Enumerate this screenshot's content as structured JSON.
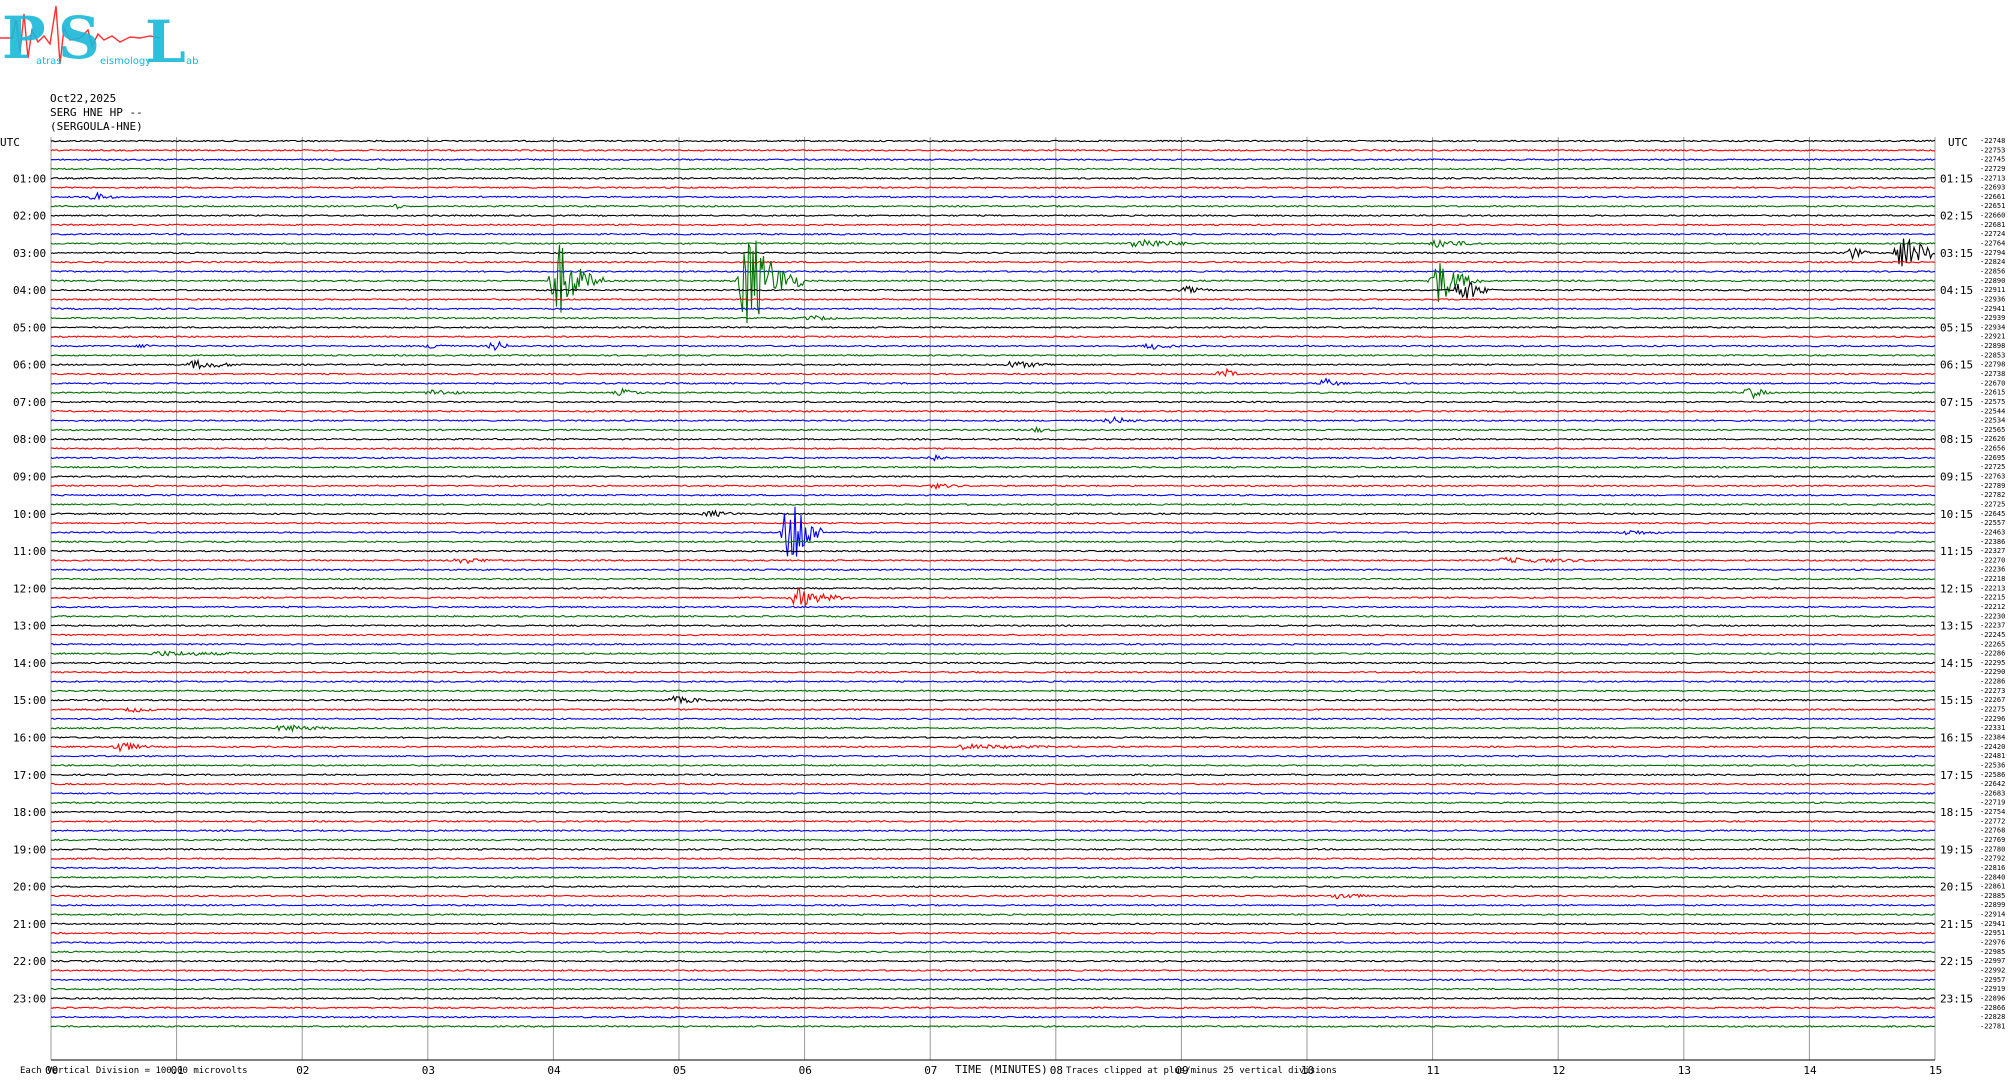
{
  "logo": {
    "letters": "PSL",
    "subtitle_left": "atras",
    "subtitle_mid": "eismology",
    "subtitle_right": "ab"
  },
  "header": {
    "date": "Oct22,2025",
    "station": "SERG HNE HP --",
    "location": "(SERGOULA-HNE)"
  },
  "utc_label": "UTC",
  "colors": {
    "trace_cycle": [
      "#000000",
      "#ff0000",
      "#0000ff",
      "#007000"
    ],
    "grid": "#999999",
    "logo_cyan": "#19b8d8",
    "logo_red": "#ff3030"
  },
  "footer": {
    "scale_note": "Each Vertical Division =  100.00 microvolts",
    "x_title": "TIME (MINUTES)",
    "clip_note": "Traces clipped at plus/minus 25 vertical divisions"
  },
  "chart_data": {
    "type": "line",
    "title": "",
    "xlabel": "TIME (MINUTES)",
    "ylabel": "UTC",
    "xlim": [
      0,
      15
    ],
    "x_ticks": [
      "00",
      "01",
      "02",
      "03",
      "04",
      "05",
      "06",
      "07",
      "08",
      "09",
      "10",
      "11",
      "12",
      "13",
      "14",
      "15"
    ],
    "trace_minutes": 15,
    "trace_count": 96,
    "left_time_labels": [
      "01:00",
      "02:00",
      "03:00",
      "04:00",
      "05:00",
      "06:00",
      "07:00",
      "08:00",
      "09:00",
      "10:00",
      "11:00",
      "12:00",
      "13:00",
      "14:00",
      "15:00",
      "16:00",
      "17:00",
      "18:00",
      "19:00",
      "20:00",
      "21:00",
      "22:00",
      "23:00"
    ],
    "right_time_labels": [
      "01:15",
      "02:15",
      "03:15",
      "04:15",
      "05:15",
      "06:15",
      "07:15",
      "08:15",
      "09:15",
      "10:15",
      "11:15",
      "12:15",
      "13:15",
      "14:15",
      "15:15",
      "16:15",
      "17:15",
      "18:15",
      "19:15",
      "20:15",
      "21:15",
      "22:15",
      "23:15"
    ],
    "right_offsets": [
      "-22748",
      "-22753",
      "-22745",
      "-22729",
      "-22713",
      "-22693",
      "-22661",
      "-22651",
      "-22660",
      "-22681",
      "-22724",
      "-22764",
      "-22794",
      "-22824",
      "-22856",
      "-22890",
      "-22911",
      "-22936",
      "-22941",
      "-22939",
      "-22934",
      "-22921",
      "-22898",
      "-22853",
      "-22798",
      "-22738",
      "-22670",
      "-22615",
      "-22575",
      "-22544",
      "-22534",
      "-22565",
      "-22626",
      "-22656",
      "-22695",
      "-22725",
      "-22763",
      "-22789",
      "-22782",
      "-22725",
      "-22645",
      "-22557",
      "-22463",
      "-22386",
      "-22327",
      "-22270",
      "-22236",
      "-22218",
      "-22213",
      "-22215",
      "-22212",
      "-22230",
      "-22237",
      "-22245",
      "-22265",
      "-22286",
      "-22295",
      "-22290",
      "-22286",
      "-22273",
      "-22267",
      "-22275",
      "-22296",
      "-22331",
      "-22384",
      "-22420",
      "-22481",
      "-22536",
      "-22586",
      "-22642",
      "-22683",
      "-22719",
      "-22754",
      "-22772",
      "-22768",
      "-22769",
      "-22780",
      "-22792",
      "-22816",
      "-22840",
      "-22861",
      "-22885",
      "-22899",
      "-22914",
      "-22941",
      "-22951",
      "-22976",
      "-22985",
      "-22997",
      "-22992",
      "-22957",
      "-22919",
      "-22896",
      "-22866",
      "-22828",
      "-22781"
    ],
    "events": [
      {
        "trace": 6,
        "minute": 0.3,
        "duration": 0.3,
        "amplitude": 5
      },
      {
        "trace": 7,
        "minute": 2.7,
        "duration": 0.2,
        "amplitude": 3
      },
      {
        "trace": 11,
        "minute": 8.6,
        "duration": 0.8,
        "amplitude": 6
      },
      {
        "trace": 11,
        "minute": 11.0,
        "duration": 0.6,
        "amplitude": 5
      },
      {
        "trace": 12,
        "minute": 14.7,
        "duration": 0.5,
        "amplitude": 20
      },
      {
        "trace": 12,
        "minute": 14.3,
        "duration": 0.2,
        "amplitude": 7
      },
      {
        "trace": 15,
        "minute": 4.0,
        "duration": 0.4,
        "amplitude": 40
      },
      {
        "trace": 15,
        "minute": 5.5,
        "duration": 0.5,
        "amplitude": 60
      },
      {
        "trace": 15,
        "minute": 11.0,
        "duration": 0.4,
        "amplitude": 25
      },
      {
        "trace": 16,
        "minute": 11.2,
        "duration": 0.3,
        "amplitude": 15
      },
      {
        "trace": 16,
        "minute": 9.0,
        "duration": 0.4,
        "amplitude": 4
      },
      {
        "trace": 19,
        "minute": 6.0,
        "duration": 0.6,
        "amplitude": 3
      },
      {
        "trace": 22,
        "minute": 0.7,
        "duration": 0.2,
        "amplitude": 3
      },
      {
        "trace": 22,
        "minute": 3.0,
        "duration": 0.3,
        "amplitude": 4
      },
      {
        "trace": 22,
        "minute": 3.5,
        "duration": 0.2,
        "amplitude": 6
      },
      {
        "trace": 22,
        "minute": 8.7,
        "duration": 0.5,
        "amplitude": 4
      },
      {
        "trace": 24,
        "minute": 1.1,
        "duration": 0.7,
        "amplitude": 5
      },
      {
        "trace": 24,
        "minute": 7.6,
        "duration": 0.8,
        "amplitude": 4
      },
      {
        "trace": 25,
        "minute": 9.3,
        "duration": 0.2,
        "amplitude": 6
      },
      {
        "trace": 26,
        "minute": 10.1,
        "duration": 0.3,
        "amplitude": 5
      },
      {
        "trace": 27,
        "minute": 3.0,
        "duration": 0.5,
        "amplitude": 4
      },
      {
        "trace": 27,
        "minute": 4.5,
        "duration": 0.4,
        "amplitude": 4
      },
      {
        "trace": 27,
        "minute": 13.5,
        "duration": 0.2,
        "amplitude": 8
      },
      {
        "trace": 30,
        "minute": 8.4,
        "duration": 0.5,
        "amplitude": 4
      },
      {
        "trace": 31,
        "minute": 7.8,
        "duration": 0.3,
        "amplitude": 3
      },
      {
        "trace": 34,
        "minute": 7.0,
        "duration": 0.2,
        "amplitude": 4
      },
      {
        "trace": 37,
        "minute": 7.0,
        "duration": 0.5,
        "amplitude": 3
      },
      {
        "trace": 40,
        "minute": 5.2,
        "duration": 0.5,
        "amplitude": 4
      },
      {
        "trace": 42,
        "minute": 5.85,
        "duration": 0.3,
        "amplitude": 50
      },
      {
        "trace": 42,
        "minute": 12.5,
        "duration": 0.8,
        "amplitude": 3
      },
      {
        "trace": 45,
        "minute": 3.2,
        "duration": 0.6,
        "amplitude": 4
      },
      {
        "trace": 45,
        "minute": 11.5,
        "duration": 2.0,
        "amplitude": 3
      },
      {
        "trace": 49,
        "minute": 5.9,
        "duration": 0.6,
        "amplitude": 10
      },
      {
        "trace": 55,
        "minute": 0.8,
        "duration": 1.8,
        "amplitude": 3
      },
      {
        "trace": 60,
        "minute": 4.9,
        "duration": 0.8,
        "amplitude": 4
      },
      {
        "trace": 61,
        "minute": 0.6,
        "duration": 0.5,
        "amplitude": 3
      },
      {
        "trace": 63,
        "minute": 1.8,
        "duration": 0.8,
        "amplitude": 4
      },
      {
        "trace": 65,
        "minute": 0.5,
        "duration": 0.4,
        "amplitude": 6
      },
      {
        "trace": 65,
        "minute": 7.2,
        "duration": 1.8,
        "amplitude": 3
      },
      {
        "trace": 81,
        "minute": 10.2,
        "duration": 0.5,
        "amplitude": 4
      }
    ]
  }
}
